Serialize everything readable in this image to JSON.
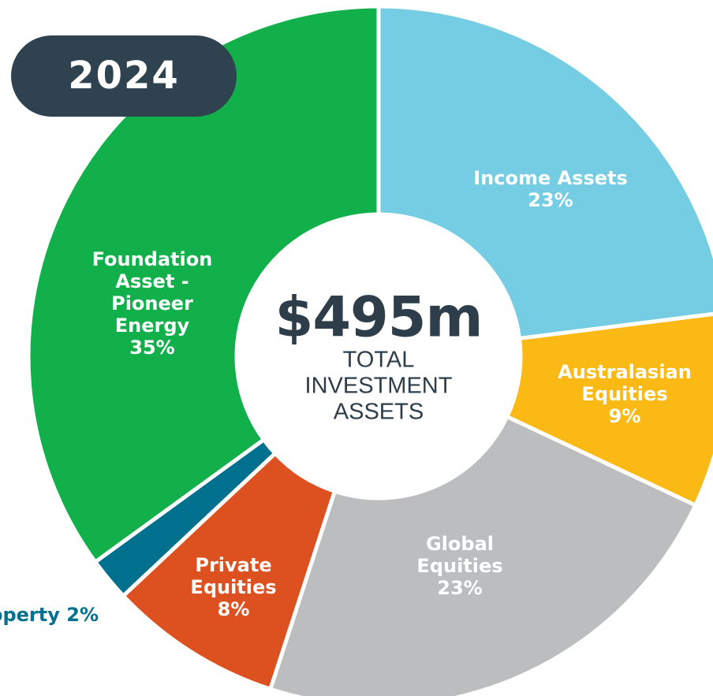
{
  "chart_data": {
    "type": "donut",
    "badge": "2024",
    "center_value": "$495m",
    "center_label": "TOTAL INVESTMENT ASSETS",
    "categories": [
      "Income Assets",
      "Australasian Equities",
      "Global Equities",
      "Private Equities",
      "Property",
      "Foundation Asset - Pioneer Energy"
    ],
    "values": [
      23,
      9,
      23,
      8,
      2,
      35
    ],
    "value_labels": [
      "23%",
      "9%",
      "23%",
      "8%",
      "2%",
      "35%"
    ],
    "colors": [
      "#74cde2",
      "#fbb915",
      "#bcbdbf",
      "#dd5121",
      "#00708f",
      "#11b04b"
    ]
  }
}
